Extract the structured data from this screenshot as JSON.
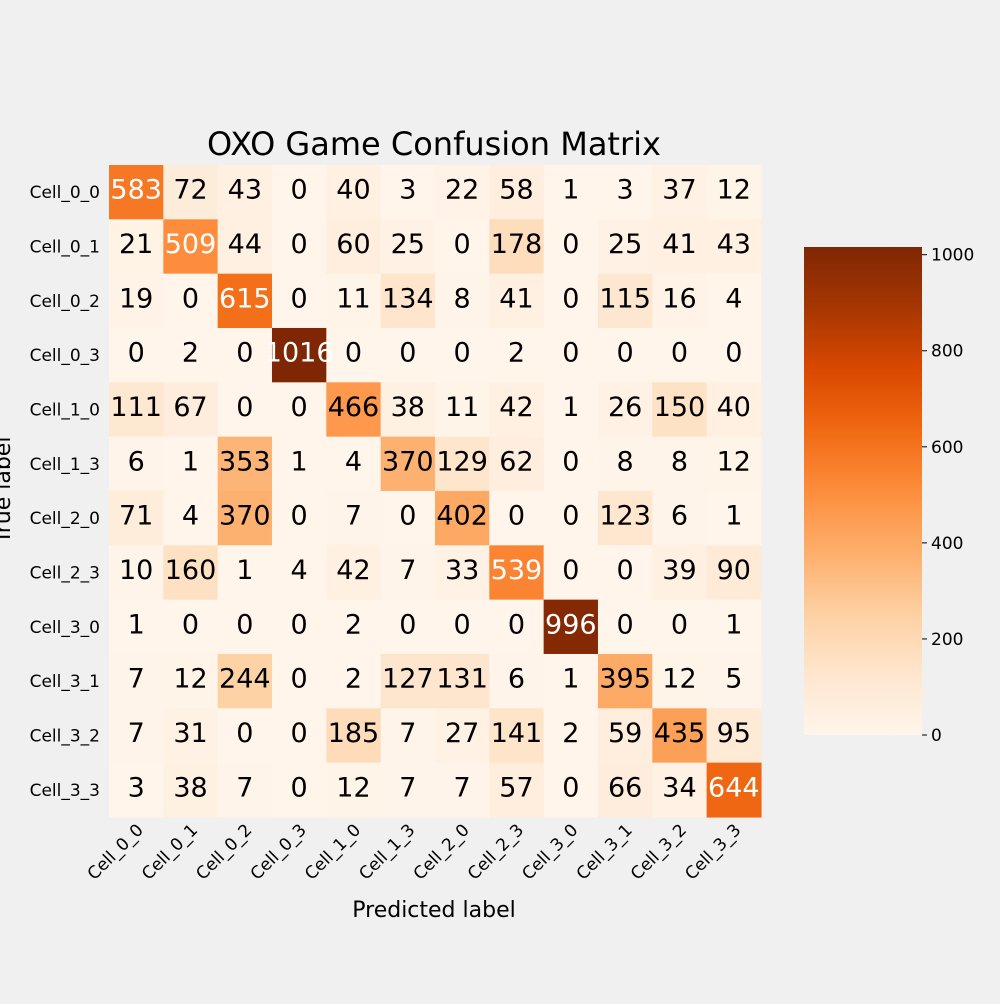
{
  "chart_data": {
    "type": "heatmap",
    "title": "OXO Game Confusion Matrix",
    "xlabel": "Predicted label",
    "ylabel": "True label",
    "x_categories": [
      "Cell_0_0",
      "Cell_0_1",
      "Cell_0_2",
      "Cell_0_3",
      "Cell_1_0",
      "Cell_1_3",
      "Cell_2_0",
      "Cell_2_3",
      "Cell_3_0",
      "Cell_3_1",
      "Cell_3_2",
      "Cell_3_3"
    ],
    "y_categories": [
      "Cell_0_0",
      "Cell_0_1",
      "Cell_0_2",
      "Cell_0_3",
      "Cell_1_0",
      "Cell_1_3",
      "Cell_2_0",
      "Cell_2_3",
      "Cell_3_0",
      "Cell_3_1",
      "Cell_3_2",
      "Cell_3_3"
    ],
    "values": [
      [
        583,
        72,
        43,
        0,
        40,
        3,
        22,
        58,
        1,
        3,
        37,
        12
      ],
      [
        21,
        509,
        44,
        0,
        60,
        25,
        0,
        178,
        0,
        25,
        41,
        43
      ],
      [
        19,
        0,
        615,
        0,
        11,
        134,
        8,
        41,
        0,
        115,
        16,
        4
      ],
      [
        0,
        2,
        0,
        1016,
        0,
        0,
        0,
        2,
        0,
        0,
        0,
        0
      ],
      [
        111,
        67,
        0,
        0,
        466,
        38,
        11,
        42,
        1,
        26,
        150,
        40
      ],
      [
        6,
        1,
        353,
        1,
        4,
        370,
        129,
        62,
        0,
        8,
        8,
        12
      ],
      [
        71,
        4,
        370,
        0,
        7,
        0,
        402,
        0,
        0,
        123,
        6,
        1
      ],
      [
        10,
        160,
        1,
        4,
        42,
        7,
        33,
        539,
        0,
        0,
        39,
        90
      ],
      [
        1,
        0,
        0,
        0,
        2,
        0,
        0,
        0,
        996,
        0,
        0,
        1
      ],
      [
        7,
        12,
        244,
        0,
        2,
        127,
        131,
        6,
        1,
        395,
        12,
        5
      ],
      [
        7,
        31,
        0,
        0,
        185,
        7,
        27,
        141,
        2,
        59,
        435,
        95
      ],
      [
        3,
        38,
        7,
        0,
        12,
        7,
        7,
        57,
        0,
        66,
        34,
        644
      ]
    ],
    "colormap": "Oranges",
    "colorbar": {
      "min": 0,
      "max": 1016,
      "ticks": [
        0,
        200,
        400,
        600,
        800,
        1000
      ]
    },
    "grid": false
  },
  "colors": {
    "background": "#f0f0f0",
    "text_dark": "#000000",
    "text_light": "#ffffff"
  }
}
